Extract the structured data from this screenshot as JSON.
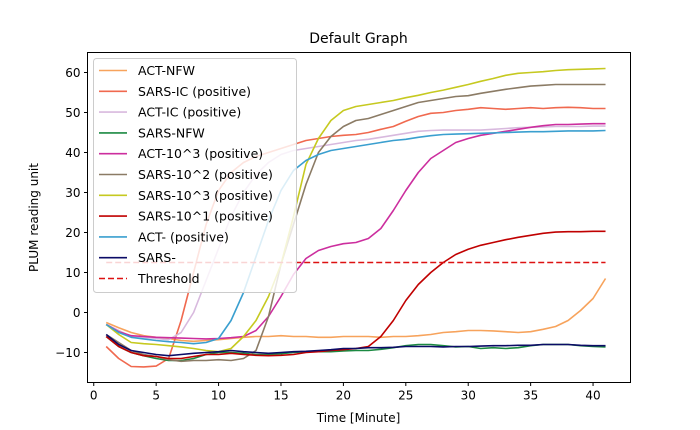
{
  "chart_data": {
    "type": "line",
    "title": "Default Graph",
    "xlabel": "Time [Minute]",
    "ylabel": "PLUM reading unit",
    "xlim": [
      -0.5,
      43
    ],
    "ylim": [
      -17.5,
      65
    ],
    "xticks": [
      0,
      5,
      10,
      15,
      20,
      25,
      30,
      35,
      40
    ],
    "yticks": [
      -10,
      0,
      10,
      20,
      30,
      40,
      50,
      60
    ],
    "grid": false,
    "legend_position": "upper-left",
    "x": [
      1,
      2,
      3,
      4,
      5,
      6,
      7,
      8,
      9,
      10,
      11,
      12,
      13,
      14,
      15,
      16,
      17,
      18,
      19,
      20,
      21,
      22,
      23,
      24,
      25,
      26,
      27,
      28,
      29,
      30,
      31,
      32,
      33,
      34,
      35,
      36,
      37,
      38,
      39,
      40,
      41
    ],
    "series": [
      {
        "name": "ACT-NFW",
        "color": "#f7a35c",
        "dashed": false,
        "values": [
          -2.5,
          -3.8,
          -5.0,
          -5.8,
          -6.2,
          -6.5,
          -7.0,
          -7.2,
          -7.0,
          -6.8,
          -6.5,
          -6.2,
          -6.0,
          -6.0,
          -5.8,
          -6.0,
          -6.0,
          -6.2,
          -6.2,
          -6.0,
          -6.0,
          -6.0,
          -6.2,
          -6.0,
          -6.0,
          -5.8,
          -5.5,
          -5.0,
          -4.8,
          -4.5,
          -4.5,
          -4.6,
          -4.8,
          -5.0,
          -4.8,
          -4.2,
          -3.5,
          -2.0,
          0.5,
          3.5,
          8.5
        ]
      },
      {
        "name": "SARS-IC (positive)",
        "color": "#f0694f",
        "dashed": false,
        "values": [
          -8.5,
          -11.5,
          -13.5,
          -13.6,
          -13.4,
          -11.5,
          -2.0,
          10.0,
          22.0,
          30.5,
          35.0,
          37.5,
          39.0,
          40.0,
          41.0,
          42.0,
          43.0,
          43.5,
          44.0,
          44.3,
          44.5,
          45.0,
          45.8,
          46.5,
          47.8,
          49.0,
          49.8,
          50.0,
          50.5,
          50.8,
          51.2,
          51.0,
          50.8,
          51.0,
          51.2,
          51.0,
          51.2,
          51.3,
          51.2,
          51.0,
          51.0
        ]
      },
      {
        "name": "ACT-IC (positive)",
        "color": "#d8b9de",
        "dashed": false,
        "values": [
          -3.0,
          -4.5,
          -6.0,
          -6.2,
          -6.5,
          -6.8,
          -5.0,
          0.0,
          8.0,
          16.0,
          24.0,
          30.0,
          34.5,
          37.5,
          39.5,
          40.5,
          41.0,
          41.5,
          42.0,
          42.5,
          43.0,
          43.3,
          43.8,
          44.3,
          44.8,
          45.3,
          45.5,
          45.6,
          45.6,
          45.6,
          45.6,
          45.8,
          46.0,
          46.2,
          46.3,
          46.4,
          46.5,
          46.5,
          46.5,
          46.6,
          46.6
        ]
      },
      {
        "name": "SARS-NFW",
        "color": "#1c8a42",
        "dashed": false,
        "values": [
          -6.0,
          -8.5,
          -10.0,
          -10.8,
          -11.5,
          -12.0,
          -12.0,
          -11.5,
          -10.5,
          -10.0,
          -10.0,
          -10.2,
          -10.5,
          -10.5,
          -10.3,
          -10.0,
          -9.8,
          -9.8,
          -9.8,
          -9.6,
          -9.5,
          -9.5,
          -9.2,
          -8.8,
          -8.3,
          -8.0,
          -8.0,
          -8.3,
          -8.6,
          -8.5,
          -9.0,
          -8.8,
          -9.0,
          -8.8,
          -8.3,
          -8.0,
          -8.0,
          -8.0,
          -8.3,
          -8.5,
          -8.6
        ]
      },
      {
        "name": "ACT-10^3 (positive)",
        "color": "#cc2e9e",
        "dashed": false,
        "values": [
          -3.0,
          -4.8,
          -5.8,
          -6.0,
          -6.2,
          -6.3,
          -6.4,
          -6.5,
          -6.6,
          -6.5,
          -6.3,
          -6.0,
          -4.5,
          -1.0,
          4.0,
          9.5,
          13.5,
          15.5,
          16.5,
          17.2,
          17.5,
          18.5,
          21.0,
          25.5,
          30.5,
          35.0,
          38.5,
          40.5,
          42.5,
          43.5,
          44.3,
          44.8,
          45.3,
          45.8,
          46.3,
          46.7,
          47.0,
          47.0,
          47.1,
          47.2,
          47.2
        ]
      },
      {
        "name": "SARS-10^2 (positive)",
        "color": "#8b7b65",
        "dashed": false,
        "values": [
          -5.5,
          -7.5,
          -9.5,
          -10.5,
          -11.0,
          -11.8,
          -12.2,
          -12.0,
          -12.0,
          -11.8,
          -12.0,
          -11.5,
          -9.5,
          -1.0,
          12.0,
          22.0,
          32.0,
          40.0,
          44.0,
          46.5,
          48.0,
          48.5,
          49.5,
          50.5,
          51.5,
          52.5,
          53.0,
          53.5,
          54.0,
          54.2,
          54.8,
          55.3,
          55.8,
          56.2,
          56.6,
          56.8,
          57.0,
          57.0,
          57.0,
          57.0,
          57.0
        ]
      },
      {
        "name": "SARS-10^3 (positive)",
        "color": "#c6c920",
        "dashed": false,
        "values": [
          -3.0,
          -5.5,
          -7.5,
          -7.8,
          -8.0,
          -8.3,
          -8.6,
          -9.0,
          -9.5,
          -9.8,
          -9.0,
          -6.0,
          -2.0,
          4.0,
          12.0,
          24.0,
          37.0,
          43.5,
          48.0,
          50.5,
          51.5,
          52.0,
          52.5,
          53.0,
          53.7,
          54.3,
          55.0,
          55.6,
          56.3,
          57.0,
          57.8,
          58.5,
          59.3,
          59.8,
          60.0,
          60.2,
          60.5,
          60.7,
          60.8,
          60.9,
          61.0
        ]
      },
      {
        "name": "SARS-10^1 (positive)",
        "color": "#c00000",
        "dashed": false,
        "values": [
          -6.0,
          -8.5,
          -10.0,
          -10.8,
          -11.0,
          -11.5,
          -11.5,
          -11.0,
          -10.5,
          -10.5,
          -10.2,
          -10.5,
          -10.7,
          -10.8,
          -10.7,
          -10.5,
          -10.0,
          -9.8,
          -9.5,
          -9.3,
          -9.0,
          -8.5,
          -6.0,
          -2.0,
          3.0,
          7.0,
          10.0,
          12.5,
          14.5,
          15.8,
          16.8,
          17.5,
          18.2,
          18.8,
          19.3,
          19.8,
          20.1,
          20.2,
          20.2,
          20.3,
          20.3
        ]
      },
      {
        "name": "ACT- (positive)",
        "color": "#3a9fcf",
        "dashed": false,
        "values": [
          -3.0,
          -5.0,
          -6.2,
          -6.6,
          -7.0,
          -7.3,
          -7.5,
          -7.8,
          -7.5,
          -6.5,
          -2.0,
          5.0,
          14.0,
          23.0,
          30.5,
          35.5,
          38.0,
          39.5,
          40.5,
          41.0,
          41.5,
          42.0,
          42.5,
          43.0,
          43.3,
          43.8,
          44.2,
          44.5,
          44.6,
          44.7,
          44.8,
          44.9,
          45.0,
          45.1,
          45.2,
          45.2,
          45.3,
          45.4,
          45.4,
          45.4,
          45.5
        ]
      },
      {
        "name": "SARS-",
        "color": "#0b0b66",
        "dashed": false,
        "values": [
          -5.5,
          -8.0,
          -9.5,
          -10.0,
          -10.5,
          -10.8,
          -10.5,
          -10.2,
          -10.0,
          -9.8,
          -9.5,
          -9.8,
          -10.0,
          -10.2,
          -10.0,
          -9.8,
          -9.7,
          -9.5,
          -9.3,
          -9.0,
          -9.0,
          -8.8,
          -8.8,
          -8.7,
          -8.5,
          -8.5,
          -8.5,
          -8.6,
          -8.5,
          -8.5,
          -8.4,
          -8.3,
          -8.3,
          -8.2,
          -8.2,
          -8.0,
          -8.0,
          -8.0,
          -8.2,
          -8.3,
          -8.3
        ]
      },
      {
        "name": "Threshold",
        "color": "#dd1111",
        "dashed": true,
        "values": [
          12.5,
          12.5,
          12.5,
          12.5,
          12.5,
          12.5,
          12.5,
          12.5,
          12.5,
          12.5,
          12.5,
          12.5,
          12.5,
          12.5,
          12.5,
          12.5,
          12.5,
          12.5,
          12.5,
          12.5,
          12.5,
          12.5,
          12.5,
          12.5,
          12.5,
          12.5,
          12.5,
          12.5,
          12.5,
          12.5,
          12.5,
          12.5,
          12.5,
          12.5,
          12.5,
          12.5,
          12.5,
          12.5,
          12.5,
          12.5,
          12.5
        ]
      }
    ]
  }
}
